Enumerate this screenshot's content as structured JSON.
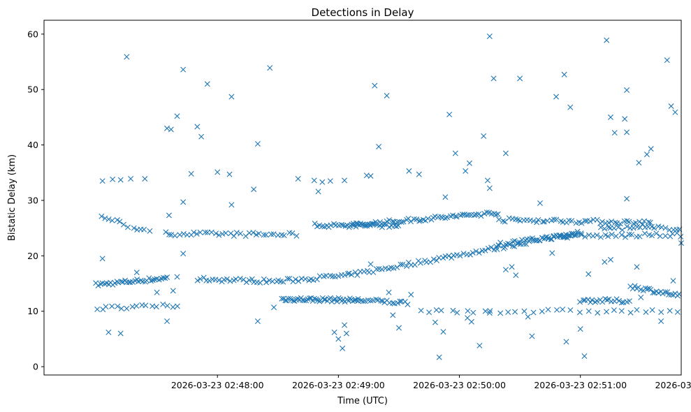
{
  "chart_data": {
    "type": "scatter",
    "title": "Detections in Delay",
    "xlabel": "Time (UTC)",
    "ylabel": "Bistatic Delay (km)",
    "marker": "x",
    "color": "#1f77b4",
    "x_unit": "seconds after 2026-03-23 02:47:00 UTC",
    "xlim": [
      -26,
      290
    ],
    "ylim": [
      -1.5,
      62.5
    ],
    "x_ticks": [
      {
        "value": 60,
        "label": "2026-03-23 02:48:00"
      },
      {
        "value": 120,
        "label": "2026-03-23 02:49:00"
      },
      {
        "value": 180,
        "label": "2026-03-23 02:50:00"
      },
      {
        "value": 240,
        "label": "2026-03-23 02:51:00"
      },
      {
        "value": 300,
        "label": "2026-03-23 02:52:00"
      }
    ],
    "y_ticks": [
      0,
      10,
      20,
      30,
      40,
      50,
      60
    ],
    "tracks": [
      {
        "name": "track-a",
        "x_start": 0,
        "x_end": 35,
        "y_start": 14.8,
        "y_end": 16.0,
        "step": 1.0
      },
      {
        "name": "track-b",
        "x_start": 2,
        "x_end": 26,
        "y_start": 27.2,
        "y_end": 24.2,
        "step": 2.0
      },
      {
        "name": "track-c",
        "x_start": 34,
        "x_end": 100,
        "y_start": 24.0,
        "y_end": 23.8,
        "step": 1.8
      },
      {
        "name": "track-d",
        "x_start": 50,
        "x_end": 90,
        "y_start": 15.8,
        "y_end": 15.4,
        "step": 1.5
      },
      {
        "name": "track-e",
        "x_start": 90,
        "x_end": 125,
        "y_start": 15.4,
        "y_end": 16.5,
        "step": 1.5
      },
      {
        "name": "track-f",
        "x_start": 125,
        "x_end": 240,
        "y_start": 16.5,
        "y_end": 24.2,
        "step": 1.5
      },
      {
        "name": "track-g",
        "x_start": 198,
        "x_end": 240,
        "y_start": 22.0,
        "y_end": 24.0,
        "step": 1.2
      },
      {
        "name": "track-h",
        "x_start": 92,
        "x_end": 130,
        "y_start": 12.2,
        "y_end": 12.0,
        "step": 0.8
      },
      {
        "name": "track-i",
        "x_start": 130,
        "x_end": 155,
        "y_start": 12.0,
        "y_end": 11.5,
        "step": 1.2
      },
      {
        "name": "track-j",
        "x_start": 240,
        "x_end": 265,
        "y_start": 12.0,
        "y_end": 11.8,
        "step": 1.2
      },
      {
        "name": "track-k",
        "x_start": 265,
        "x_end": 300,
        "y_start": 14.5,
        "y_end": 12.0,
        "step": 1.0
      },
      {
        "name": "track-l",
        "x_start": 125,
        "x_end": 200,
        "y_start": 25.5,
        "y_end": 27.8,
        "step": 1.2
      },
      {
        "name": "track-m",
        "x_start": 200,
        "x_end": 275,
        "y_start": 26.5,
        "y_end": 26.0,
        "step": 1.5
      },
      {
        "name": "track-n",
        "x_start": 230,
        "x_end": 295,
        "y_start": 23.5,
        "y_end": 23.8,
        "step": 2.0
      },
      {
        "name": "track-o",
        "x_start": 250,
        "x_end": 300,
        "y_start": 25.0,
        "y_end": 25.0,
        "step": 1.8
      },
      {
        "name": "track-p",
        "x_start": 108,
        "x_end": 150,
        "y_start": 25.5,
        "y_end": 25.5,
        "step": 1.2
      },
      {
        "name": "track-q",
        "x_start": 0,
        "x_end": 40,
        "y_start": 10.5,
        "y_end": 11.0,
        "step": 2.5
      },
      {
        "name": "track-r",
        "x_start": 160,
        "x_end": 300,
        "y_start": 10.0,
        "y_end": 10.0,
        "step": 4.0
      }
    ],
    "outliers": [
      [
        15,
        55.9
      ],
      [
        43,
        53.6
      ],
      [
        55,
        51.0
      ],
      [
        67,
        48.7
      ],
      [
        86,
        53.9
      ],
      [
        138,
        50.7
      ],
      [
        144,
        48.9
      ],
      [
        195,
        59.6
      ],
      [
        197,
        52.0
      ],
      [
        253,
        58.9
      ],
      [
        283,
        55.3
      ],
      [
        302,
        59.0
      ],
      [
        303,
        51.9
      ],
      [
        35,
        43.0
      ],
      [
        37,
        42.8
      ],
      [
        40,
        45.2
      ],
      [
        50,
        43.3
      ],
      [
        52,
        41.5
      ],
      [
        80,
        40.2
      ],
      [
        140,
        39.7
      ],
      [
        175,
        45.5
      ],
      [
        210,
        52.0
      ],
      [
        228,
        48.7
      ],
      [
        235,
        46.8
      ],
      [
        232,
        52.7
      ],
      [
        255,
        45.0
      ],
      [
        257,
        42.2
      ],
      [
        263,
        49.9
      ],
      [
        262,
        44.7
      ],
      [
        263,
        42.3
      ],
      [
        285,
        47.0
      ],
      [
        287,
        45.9
      ],
      [
        3,
        33.5
      ],
      [
        8,
        33.8
      ],
      [
        12,
        33.7
      ],
      [
        17,
        33.9
      ],
      [
        24,
        33.9
      ],
      [
        36,
        27.3
      ],
      [
        43,
        29.7
      ],
      [
        47,
        34.8
      ],
      [
        60,
        35.1
      ],
      [
        66,
        34.7
      ],
      [
        78,
        32.0
      ],
      [
        100,
        33.9
      ],
      [
        108,
        33.6
      ],
      [
        110,
        31.6
      ],
      [
        112,
        33.3
      ],
      [
        116,
        33.5
      ],
      [
        123,
        33.6
      ],
      [
        134,
        34.5
      ],
      [
        136,
        34.4
      ],
      [
        155,
        35.3
      ],
      [
        160,
        34.7
      ],
      [
        173,
        30.6
      ],
      [
        178,
        38.5
      ],
      [
        183,
        35.3
      ],
      [
        185,
        36.7
      ],
      [
        192,
        41.6
      ],
      [
        194,
        33.6
      ],
      [
        195,
        32.2
      ],
      [
        203,
        38.5
      ],
      [
        220,
        29.5
      ],
      [
        263,
        30.3
      ],
      [
        269,
        36.8
      ],
      [
        273,
        38.3
      ],
      [
        275,
        39.3
      ],
      [
        305,
        33.0
      ],
      [
        3,
        19.5
      ],
      [
        6,
        6.2
      ],
      [
        12,
        6.0
      ],
      [
        20,
        17.0
      ],
      [
        30,
        13.4
      ],
      [
        35,
        8.2
      ],
      [
        38,
        13.7
      ],
      [
        40,
        16.2
      ],
      [
        43,
        20.4
      ],
      [
        67,
        29.2
      ],
      [
        80,
        8.2
      ],
      [
        88,
        10.7
      ],
      [
        118,
        6.2
      ],
      [
        120,
        5.0
      ],
      [
        122,
        3.3
      ],
      [
        123,
        7.5
      ],
      [
        124,
        6.0
      ],
      [
        136,
        18.5
      ],
      [
        145,
        13.4
      ],
      [
        147,
        9.3
      ],
      [
        150,
        7.0
      ],
      [
        156,
        13.0
      ],
      [
        168,
        8.0
      ],
      [
        170,
        1.7
      ],
      [
        172,
        6.3
      ],
      [
        184,
        8.8
      ],
      [
        186,
        8.1
      ],
      [
        190,
        3.8
      ],
      [
        195,
        9.7
      ],
      [
        203,
        17.5
      ],
      [
        206,
        18.0
      ],
      [
        208,
        16.5
      ],
      [
        214,
        9.0
      ],
      [
        216,
        5.5
      ],
      [
        226,
        20.5
      ],
      [
        233,
        4.5
      ],
      [
        240,
        6.8
      ],
      [
        242,
        1.9
      ],
      [
        244,
        16.7
      ],
      [
        252,
        18.9
      ],
      [
        255,
        19.3
      ],
      [
        268,
        18.0
      ],
      [
        270,
        12.5
      ],
      [
        280,
        8.2
      ],
      [
        286,
        15.5
      ],
      [
        290,
        22.3
      ],
      [
        300,
        1.3
      ],
      [
        301,
        7.5
      ],
      [
        304,
        10.3
      ]
    ]
  }
}
